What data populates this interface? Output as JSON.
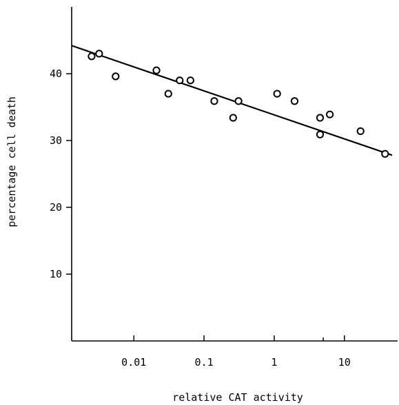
{
  "chart_data": {
    "type": "scatter",
    "title": "",
    "xlabel": "relative CAT activity",
    "ylabel": "percentage cell death",
    "x_scale": "log",
    "xlim": [
      0.0013,
      60
    ],
    "ylim": [
      0,
      50
    ],
    "x_ticks": [
      {
        "value": 0.01,
        "label": "0.01"
      },
      {
        "value": 0.1,
        "label": "0.1"
      },
      {
        "value": 1,
        "label": "1"
      },
      {
        "value": 10,
        "label": "10"
      }
    ],
    "x_minor_ticks": [
      5
    ],
    "y_ticks": [
      {
        "value": 10,
        "label": "10"
      },
      {
        "value": 20,
        "label": "20"
      },
      {
        "value": 30,
        "label": "30"
      },
      {
        "value": 40,
        "label": "40"
      }
    ],
    "grid": false,
    "legend": "none",
    "colors": {
      "marks": "#000000",
      "background": "#ffffff"
    },
    "points": [
      {
        "x": 0.0025,
        "y": 42.6
      },
      {
        "x": 0.0032,
        "y": 43.0
      },
      {
        "x": 0.0055,
        "y": 39.6
      },
      {
        "x": 0.021,
        "y": 40.5
      },
      {
        "x": 0.031,
        "y": 37.0
      },
      {
        "x": 0.045,
        "y": 39.0
      },
      {
        "x": 0.064,
        "y": 39.0
      },
      {
        "x": 0.14,
        "y": 35.9
      },
      {
        "x": 0.26,
        "y": 33.4
      },
      {
        "x": 0.31,
        "y": 35.9
      },
      {
        "x": 1.1,
        "y": 37.0
      },
      {
        "x": 1.95,
        "y": 35.9
      },
      {
        "x": 4.5,
        "y": 33.4
      },
      {
        "x": 4.5,
        "y": 30.9
      },
      {
        "x": 6.2,
        "y": 33.9
      },
      {
        "x": 17,
        "y": 31.4
      },
      {
        "x": 38,
        "y": 28.0
      }
    ],
    "fit_line": {
      "type": "linear-in-log-x",
      "from": {
        "x": 0.0013,
        "y": 44.2
      },
      "to": {
        "x": 60,
        "y": 27.8
      }
    }
  }
}
